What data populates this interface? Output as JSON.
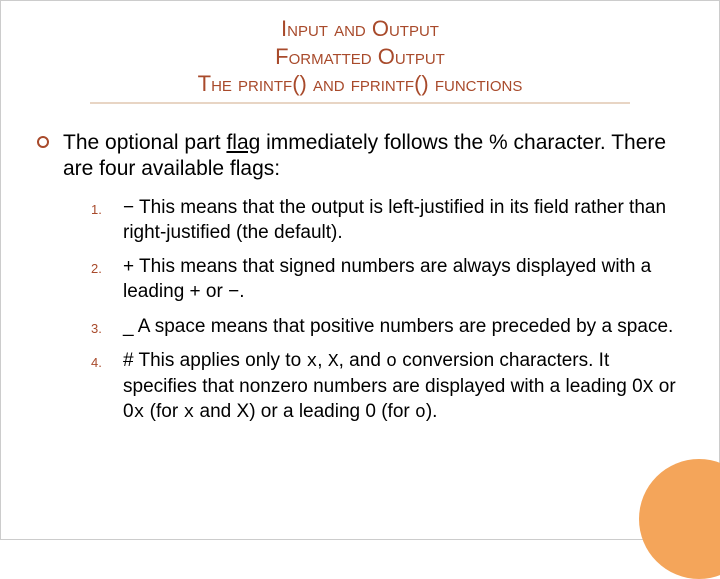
{
  "header": {
    "line1": "Input and Output",
    "line2": "Formatted Output",
    "line3": "The printf() and fprintf() functions"
  },
  "intro": {
    "prefix": "The optional part ",
    "flag": "flag",
    "suffix": " immediately follows the % character. There are four available flags:"
  },
  "items": [
    {
      "num": "1.",
      "lead": "−",
      "body": " This means that the output is left-justified in its field rather than right-justified (the default)."
    },
    {
      "num": "2.",
      "lead": "+",
      "body": " This means that signed numbers are always displayed with a leading + or −."
    },
    {
      "num": "3.",
      "lead": "_",
      "body": "  A space means that positive numbers are preceded by a space."
    },
    {
      "num": "4.",
      "lead": " #",
      "body_html": " This applies only to <span class='mono'>x</span>, <span class='mono'>X</span>, and <span class='mono'>o</span> conversion characters. It specifies that nonzero numbers are displayed with a leading 0<span class='mono'>X</span> or 0<span class='mono'>x</span> (for <span class='mono'>x</span> and X) or a leading 0 (for <span class='mono'>o</span>)."
    }
  ],
  "colors": {
    "accent": "#a84a2b",
    "rule": "#e8d5c4",
    "circle": "#f4a55a"
  }
}
